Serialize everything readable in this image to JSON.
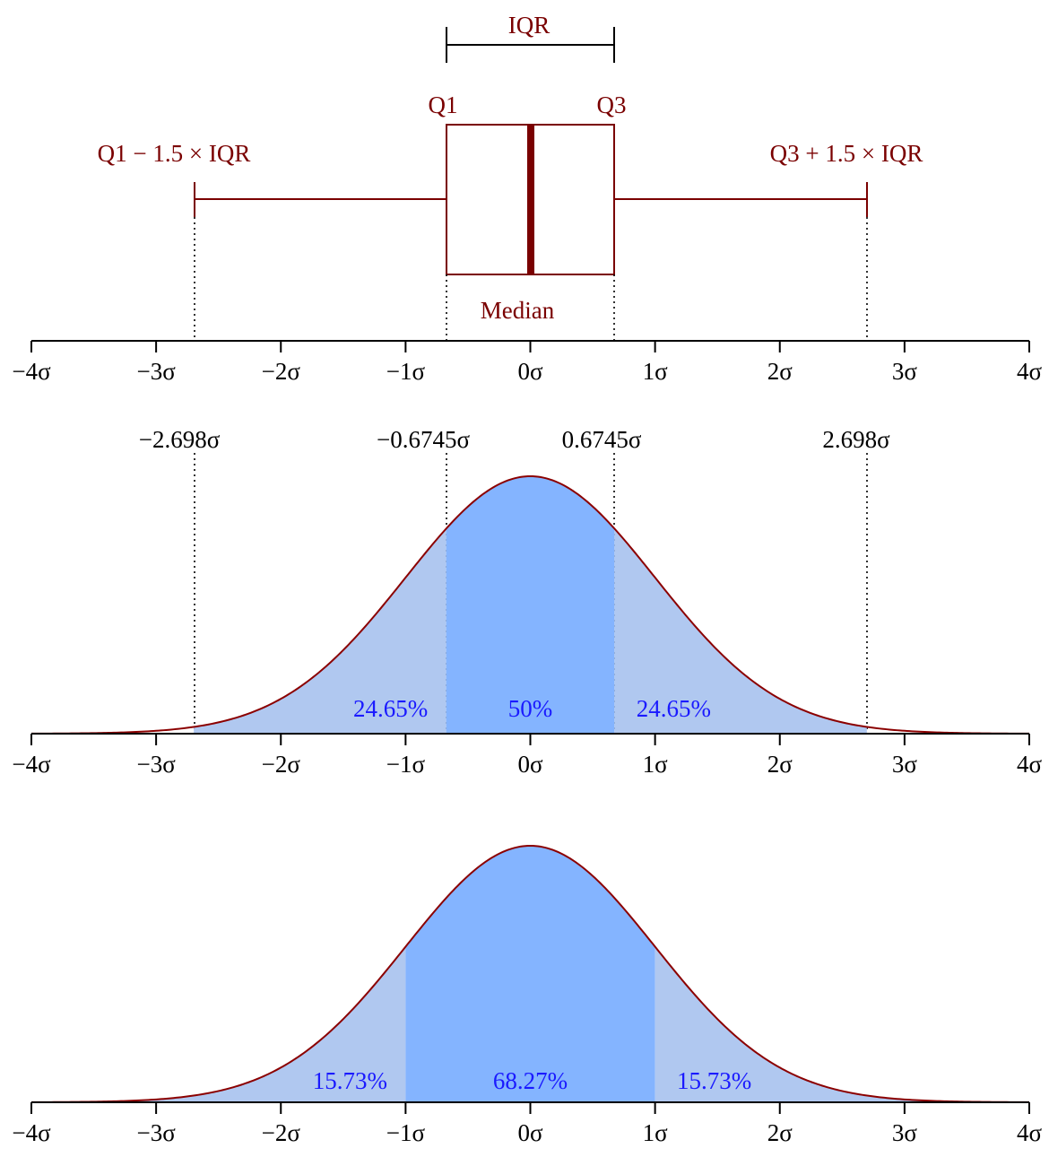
{
  "colors": {
    "dark_red": "#7a0000",
    "curve": "#8b0000",
    "light_fill": "#b0c8f0",
    "mid_fill": "#84b4ff",
    "percent_text": "#1a1aff",
    "axis": "#000000"
  },
  "axis_ticks": [
    {
      "value": -4,
      "label": "−4σ"
    },
    {
      "value": -3,
      "label": "−3σ"
    },
    {
      "value": -2,
      "label": "−2σ"
    },
    {
      "value": -1,
      "label": "−1σ"
    },
    {
      "value": 0,
      "label": "0σ"
    },
    {
      "value": 1,
      "label": "1σ"
    },
    {
      "value": 2,
      "label": "2σ"
    },
    {
      "value": 3,
      "label": "3σ"
    },
    {
      "value": 4,
      "label": "4σ"
    }
  ],
  "boxplot": {
    "iqr_label": "IQR",
    "q1_label": "Q1",
    "q3_label": "Q3",
    "lower_whisker_label": "Q1 − 1.5 × IQR",
    "upper_whisker_label": "Q3 + 1.5 × IQR",
    "median_label": "Median"
  },
  "quantiles": [
    {
      "value": -2.698,
      "label": "−2.698σ"
    },
    {
      "value": -0.6745,
      "label": "−0.6745σ"
    },
    {
      "value": 0.6745,
      "label": "0.6745σ"
    },
    {
      "value": 2.698,
      "label": "2.698σ"
    }
  ],
  "chart_data": [
    {
      "type": "boxplot",
      "x_range": [
        -4,
        4
      ],
      "q1": -0.6745,
      "median": 0,
      "q3": 0.6745,
      "whisker_low": -2.698,
      "whisker_high": 2.698
    },
    {
      "type": "area",
      "distribution": "normal",
      "mean": 0,
      "sd": 1,
      "x_range": [
        -4,
        4
      ],
      "regions": [
        {
          "from": -2.698,
          "to": -0.6745,
          "label": "24.65%",
          "value": 24.65
        },
        {
          "from": -0.6745,
          "to": 0.6745,
          "label": "50%",
          "value": 50
        },
        {
          "from": 0.6745,
          "to": 2.698,
          "label": "24.65%",
          "value": 24.65
        }
      ]
    },
    {
      "type": "area",
      "distribution": "normal",
      "mean": 0,
      "sd": 1,
      "x_range": [
        -4,
        4
      ],
      "regions": [
        {
          "from": -4,
          "to": -1,
          "label": "15.73%",
          "value": 15.73
        },
        {
          "from": -1,
          "to": 1,
          "label": "68.27%",
          "value": 68.27
        },
        {
          "from": 1,
          "to": 4,
          "label": "15.73%",
          "value": 15.73
        }
      ]
    }
  ]
}
